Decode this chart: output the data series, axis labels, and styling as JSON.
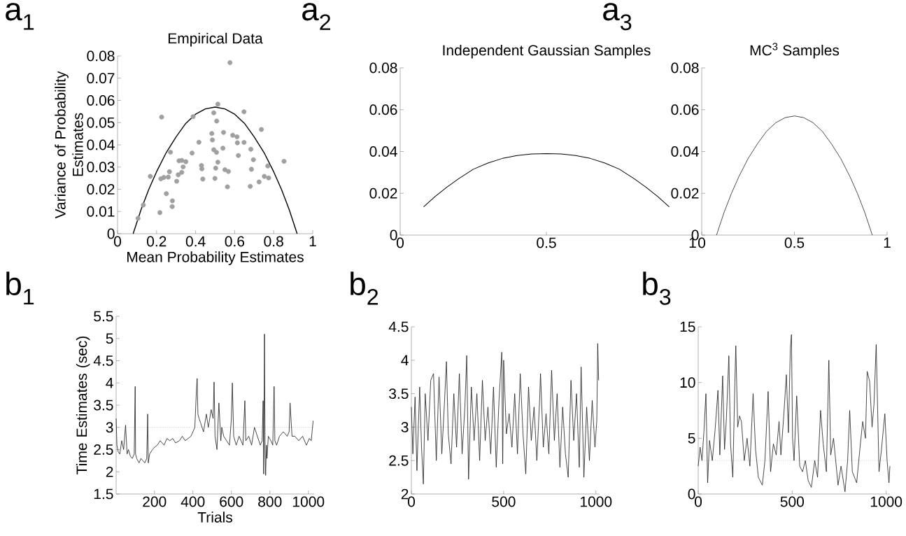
{
  "chart_data": [
    {
      "type": "scatter",
      "title": "Empirical Data",
      "xlabel": "Mean Probability Estimates",
      "ylabel": "Variance of Probability Estimates",
      "annotations": [
        "a$_{1}$"
      ],
      "xlim": [
        0,
        1
      ],
      "xticks": [
        0,
        0.2,
        0.4,
        0.6,
        0.8,
        1
      ],
      "ylim": [
        0,
        0.08
      ],
      "yticks": [
        0,
        0.01,
        0.02,
        0.03,
        0.04,
        0.05,
        0.06,
        0.07,
        0.08
      ],
      "series": [
        {
          "type": "scatter",
          "marker": "circle",
          "color": "#a0a0a0",
          "x": [
            0.105,
            0.132,
            0.168,
            0.217,
            0.226,
            0.222,
            0.237,
            0.25,
            0.26,
            0.266,
            0.271,
            0.281,
            0.28,
            0.303,
            0.311,
            0.315,
            0.329,
            0.329,
            0.336,
            0.35,
            0.382,
            0.387,
            0.417,
            0.43,
            0.432,
            0.437,
            0.483,
            0.486,
            0.493,
            0.493,
            0.499,
            0.503,
            0.507,
            0.508,
            0.514,
            0.514,
            0.54,
            0.543,
            0.55,
            0.563,
            0.568,
            0.576,
            0.59,
            0.612,
            0.614,
            0.619,
            0.648,
            0.648,
            0.683,
            0.686,
            0.68,
            0.696,
            0.725,
            0.737,
            0.752,
            0.77,
            0.774,
            0.853
          ],
          "values": [
            0.0069,
            0.0129,
            0.0258,
            0.0095,
            0.0525,
            0.0247,
            0.0253,
            0.018,
            0.0255,
            0.0279,
            0.0367,
            0.0148,
            0.0122,
            0.0236,
            0.0265,
            0.0328,
            0.033,
            0.0276,
            0.0301,
            0.0324,
            0.0363,
            0.0527,
            0.0412,
            0.0307,
            0.0292,
            0.0246,
            0.0451,
            0.0422,
            0.0544,
            0.0378,
            0.0249,
            0.0295,
            0.0366,
            0.0507,
            0.0583,
            0.0322,
            0.0385,
            0.0456,
            0.0288,
            0.0211,
            0.028,
            0.077,
            0.0443,
            0.0436,
            0.0409,
            0.0352,
            0.0549,
            0.0411,
            0.038,
            0.029,
            0.0213,
            0.0333,
            0.0233,
            0.0469,
            0.0258,
            0.0305,
            0.0251,
            0.0326
          ]
        },
        {
          "type": "line",
          "color": "#000000",
          "x": [
            0.08,
            0.12,
            0.16,
            0.2,
            0.25,
            0.3,
            0.35,
            0.4,
            0.45,
            0.5,
            0.55,
            0.6,
            0.65,
            0.7,
            0.75,
            0.8,
            0.84,
            0.88,
            0.92
          ],
          "values": [
            0,
            0.0107,
            0.0199,
            0.0279,
            0.0366,
            0.0436,
            0.0497,
            0.0538,
            0.0562,
            0.057,
            0.0562,
            0.0538,
            0.0497,
            0.0436,
            0.0366,
            0.0279,
            0.0199,
            0.0107,
            0
          ]
        }
      ]
    },
    {
      "type": "line",
      "title": "Independent Gaussian Samples",
      "annotations": [
        "a$_{2}$"
      ],
      "xlim": [
        0,
        1
      ],
      "xticks": [
        0,
        0.5,
        1
      ],
      "ylim": [
        0,
        0.08
      ],
      "yticks": [
        0,
        0.02,
        0.04,
        0.06,
        0.08
      ],
      "series": [
        {
          "color": "#000000",
          "x": [
            0.08,
            0.12,
            0.16,
            0.2,
            0.25,
            0.3,
            0.35,
            0.4,
            0.45,
            0.5,
            0.55,
            0.6,
            0.65,
            0.7,
            0.75,
            0.8,
            0.84,
            0.88,
            0.92
          ],
          "values": [
            0.0135,
            0.0185,
            0.023,
            0.027,
            0.0315,
            0.0345,
            0.0367,
            0.0381,
            0.0388,
            0.039,
            0.0388,
            0.0381,
            0.0367,
            0.0345,
            0.0315,
            0.027,
            0.023,
            0.0185,
            0.0135
          ]
        }
      ]
    },
    {
      "type": "line",
      "title": "MC$^{3}$ Samples",
      "annotations": [
        "a$_{3}$"
      ],
      "xlim": [
        0,
        1
      ],
      "xticks": [
        0,
        0.5,
        1
      ],
      "ylim": [
        0,
        0.08
      ],
      "yticks": [
        0,
        0.02,
        0.04,
        0.06,
        0.08
      ],
      "series": [
        {
          "color": "#000000",
          "x": [
            0.08,
            0.12,
            0.16,
            0.2,
            0.25,
            0.3,
            0.35,
            0.4,
            0.45,
            0.5,
            0.55,
            0.6,
            0.65,
            0.7,
            0.75,
            0.8,
            0.84,
            0.88,
            0.92
          ],
          "values": [
            0,
            0.0107,
            0.0199,
            0.0279,
            0.0366,
            0.0436,
            0.0497,
            0.0538,
            0.0562,
            0.057,
            0.0562,
            0.0538,
            0.0497,
            0.0436,
            0.0366,
            0.0279,
            0.0199,
            0.0107,
            0
          ]
        }
      ]
    },
    {
      "type": "line",
      "xlabel": "Trials",
      "ylabel": "Time Estimates (sec)",
      "annotations": [
        "b$_{1}$"
      ],
      "xlim": [
        1,
        1030
      ],
      "xticks": [
        200,
        400,
        600,
        800,
        1000
      ],
      "ylim": [
        1.5,
        5.5
      ],
      "yticks": [
        1.5,
        2,
        2.5,
        3,
        3.5,
        4,
        4.5,
        5,
        5.5
      ],
      "ref_lines": [
        {
          "axis": "y",
          "value": 3,
          "color": "#999999",
          "line_style": "dotted"
        }
      ],
      "series": [
        {
          "color": "#1a1a1a",
          "x": [
            1,
            5,
            12,
            20,
            30,
            40,
            50,
            58,
            65,
            75,
            85,
            95,
            100,
            102,
            108,
            120,
            130,
            140,
            150,
            160,
            165,
            168,
            175,
            190,
            200,
            215,
            230,
            250,
            265,
            280,
            295,
            310,
            330,
            345,
            360,
            375,
            390,
            400,
            410,
            418,
            422,
            426,
            432,
            440,
            455,
            470,
            480,
            495,
            505,
            510,
            515,
            525,
            535,
            545,
            550,
            560,
            575,
            590,
            600,
            605,
            612,
            625,
            640,
            660,
            670,
            675,
            690,
            705,
            720,
            735,
            750,
            760,
            765,
            768,
            772,
            775,
            778,
            782,
            785,
            792,
            805,
            815,
            822,
            826,
            835,
            850,
            870,
            890,
            900,
            905,
            915,
            930,
            950,
            970,
            990,
            1005,
            1015,
            1025
          ],
          "values": [
            3.2,
            2.6,
            2.45,
            2.4,
            2.7,
            2.5,
            3.05,
            2.4,
            2.5,
            2.35,
            2.3,
            2.4,
            3.92,
            2.4,
            2.3,
            2.2,
            2.3,
            2.25,
            2.2,
            2.3,
            3.3,
            2.2,
            2.4,
            2.5,
            2.55,
            2.6,
            2.7,
            2.6,
            2.75,
            2.7,
            2.75,
            2.65,
            2.7,
            2.8,
            2.7,
            2.75,
            2.8,
            2.9,
            3.0,
            3.8,
            4.1,
            3.3,
            3.2,
            3.1,
            2.9,
            3.3,
            3.0,
            3.4,
            3.2,
            4.02,
            2.8,
            2.5,
            3.55,
            2.7,
            3.0,
            2.8,
            2.7,
            2.6,
            3.2,
            4.0,
            2.8,
            2.6,
            2.8,
            2.6,
            3.6,
            2.7,
            2.8,
            2.6,
            3.0,
            2.8,
            2.6,
            2.7,
            3.6,
            1.95,
            5.1,
            2.5,
            1.92,
            2.6,
            2.3,
            2.8,
            2.7,
            2.6,
            3.92,
            2.7,
            2.6,
            2.8,
            2.9,
            2.8,
            2.9,
            3.55,
            2.8,
            2.8,
            2.7,
            2.8,
            2.6,
            2.75,
            2.7,
            3.15
          ]
        }
      ]
    },
    {
      "type": "line",
      "annotations": [
        "b$_{2}$"
      ],
      "xlim": [
        0,
        1020
      ],
      "xticks": [
        0,
        500,
        1000
      ],
      "ylim": [
        2,
        4.5
      ],
      "yticks": [
        2,
        2.5,
        3,
        3.5,
        4,
        4.5
      ],
      "ref_lines": [
        {
          "axis": "y",
          "value": 3,
          "color": "#999999",
          "line_style": "dotted"
        }
      ],
      "series": [
        {
          "color": "#1a1a1a",
          "x": [
            0,
            8,
            20,
            30,
            45,
            55,
            65,
            75,
            90,
            105,
            120,
            135,
            150,
            165,
            180,
            190,
            200,
            215,
            230,
            245,
            260,
            275,
            290,
            300,
            310,
            325,
            340,
            355,
            370,
            385,
            400,
            415,
            430,
            445,
            460,
            475,
            490,
            495,
            500,
            515,
            530,
            545,
            560,
            575,
            590,
            605,
            620,
            635,
            650,
            665,
            680,
            695,
            700,
            715,
            730,
            745,
            760,
            775,
            790,
            805,
            820,
            835,
            850,
            865,
            880,
            895,
            910,
            920,
            935,
            950,
            965,
            980,
            995,
            1005,
            1010,
            1015
          ],
          "values": [
            3.3,
            2.6,
            3.45,
            2.35,
            3.6,
            2.7,
            2.15,
            3.5,
            2.8,
            3.7,
            3.8,
            2.5,
            3.75,
            2.6,
            3.4,
            3.98,
            2.9,
            2.45,
            3.5,
            2.7,
            3.8,
            2.6,
            3.3,
            4.07,
            2.22,
            3.6,
            2.8,
            3.5,
            2.5,
            3.7,
            2.8,
            3.3,
            2.6,
            3.6,
            2.4,
            3.4,
            4.12,
            2.45,
            4.0,
            2.9,
            3.2,
            2.7,
            3.5,
            2.6,
            3.8,
            2.9,
            2.3,
            3.6,
            2.8,
            3.3,
            2.5,
            3.4,
            3.8,
            2.7,
            3.2,
            2.6,
            3.85,
            2.8,
            3.5,
            2.4,
            3.3,
            2.6,
            2.25,
            3.7,
            2.8,
            3.5,
            2.4,
            3.9,
            2.25,
            3.3,
            2.5,
            3.4,
            2.7,
            3.1,
            4.25,
            3.7
          ]
        }
      ]
    },
    {
      "type": "line",
      "annotations": [
        "b$_{3}$"
      ],
      "xlim": [
        0,
        1020
      ],
      "xticks": [
        0,
        500,
        1000
      ],
      "ylim": [
        0,
        15
      ],
      "yticks": [
        0,
        5,
        10,
        15
      ],
      "ref_lines": [
        {
          "axis": "y",
          "value": 3,
          "color": "#999999",
          "line_style": "dotted"
        }
      ],
      "series": [
        {
          "color": "#1a1a1a",
          "x": [
            0,
            10,
            20,
            30,
            41,
            50,
            60,
            75,
            90,
            105,
            115,
            130,
            140,
            150,
            163,
            172,
            184,
            195,
            200,
            210,
            220,
            230,
            245,
            260,
            275,
            292,
            305,
            320,
            341,
            355,
            372,
            385,
            400,
            415,
            430,
            440,
            455,
            469,
            480,
            490,
            496,
            502,
            510,
            524,
            540,
            555,
            570,
            585,
            602,
            620,
            635,
            651,
            665,
            682,
            695,
            705,
            720,
            744,
            760,
            781,
            795,
            806,
            820,
            843,
            860,
            875,
            890,
            899,
            912,
            925,
            935,
            947,
            962,
            975,
            993,
            1005,
            1015,
            1020
          ],
          "values": [
            2.5,
            4.2,
            3.0,
            5.5,
            9.0,
            1.0,
            4.8,
            3.0,
            5.8,
            9.3,
            3.5,
            10.6,
            4.0,
            6.8,
            12.4,
            4.5,
            1.5,
            10.0,
            13.3,
            6.0,
            7.0,
            6.5,
            3.0,
            5.0,
            2.5,
            9.0,
            4.0,
            1.5,
            0.8,
            3.0,
            9.2,
            2.0,
            4.5,
            3.5,
            6.5,
            3.5,
            7.0,
            10.7,
            5.5,
            13.0,
            14.3,
            5.0,
            3.0,
            8.8,
            2.5,
            2.0,
            3.0,
            1.2,
            0.6,
            3.0,
            1.5,
            7.5,
            4.5,
            2.0,
            12.0,
            3.5,
            5.0,
            0.8,
            2.5,
            0.2,
            3.0,
            7.5,
            2.0,
            1.0,
            4.0,
            6.5,
            5.0,
            11.0,
            10.1,
            6.0,
            8.0,
            13.4,
            2.0,
            4.0,
            7.2,
            3.0,
            1.0,
            2.5
          ]
        }
      ]
    }
  ]
}
